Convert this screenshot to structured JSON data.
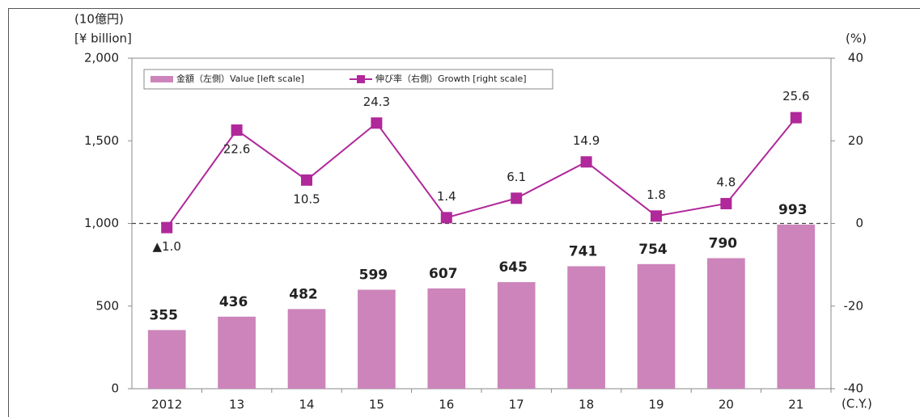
{
  "chart_data": {
    "type": "bar",
    "y_label": "[¥ billion]",
    "y_unit": "(10億円)",
    "y2_label": "(%)",
    "x_label": "(C.Y.)",
    "categories": [
      "2012",
      "13",
      "14",
      "15",
      "16",
      "17",
      "18",
      "19",
      "20",
      "21"
    ],
    "series": [
      {
        "name": "金額（左側）Value [left scale]",
        "type": "bar",
        "color": "#cc84ba",
        "values": [
          355,
          436,
          482,
          599,
          607,
          645,
          741,
          754,
          790,
          993
        ]
      },
      {
        "name": "伸び率（右側）Growth [right scale]",
        "type": "line",
        "axis": "y2",
        "color": "#b0289a",
        "values": [
          -1.0,
          22.6,
          10.5,
          24.3,
          1.4,
          6.1,
          14.9,
          1.8,
          4.8,
          25.6
        ],
        "value_labels": [
          "▲1.0",
          "22.6",
          "10.5",
          "24.3",
          "1.4",
          "6.1",
          "14.9",
          "1.8",
          "4.8",
          "25.6"
        ]
      }
    ],
    "ylim": [
      0,
      2000
    ],
    "yticks": [
      0,
      500,
      {
        "value": 1000,
        "label": "1,000"
      },
      {
        "value": 1500,
        "label": "1,500"
      },
      {
        "value": 2000,
        "label": "2,000"
      }
    ],
    "y2lim": [
      -40,
      40
    ],
    "y2ticks": [
      -40,
      -20,
      0,
      20,
      40
    ],
    "legend": "top-left"
  }
}
